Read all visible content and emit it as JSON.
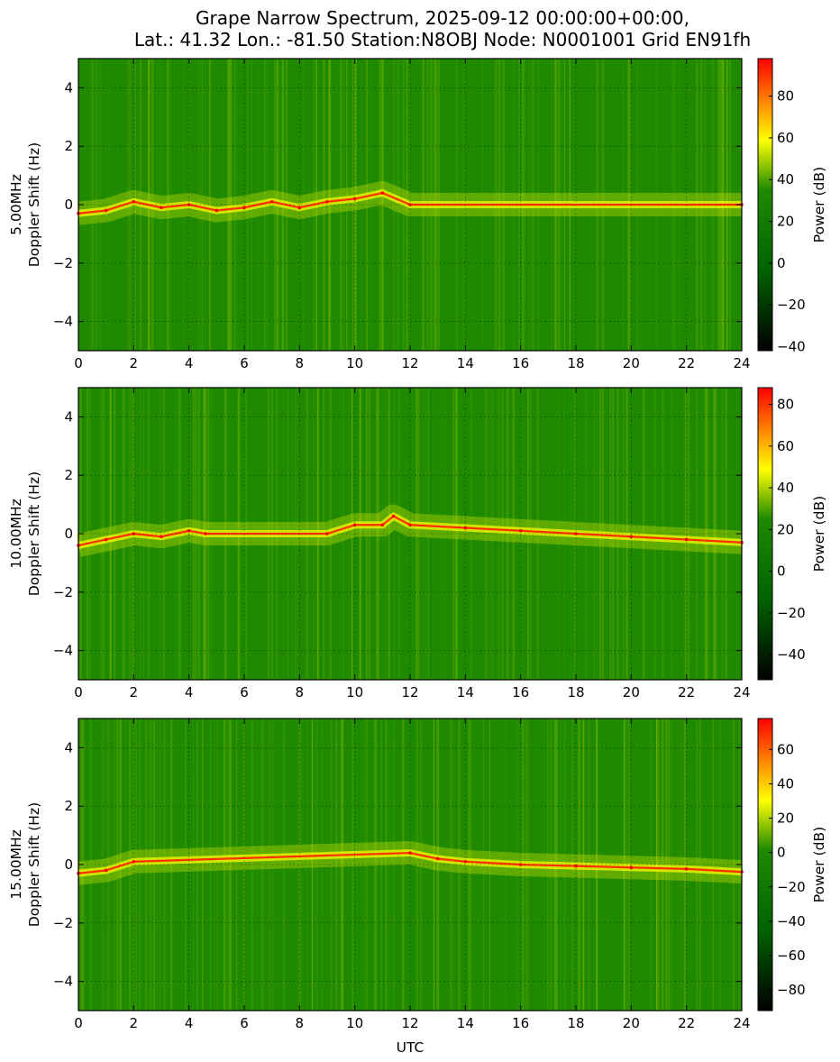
{
  "title": "Grape Narrow Spectrum, 2025-09-12 00:00:00+00:00,",
  "subtitle": "Lat.: 41.32 Lon.: -81.50 Station:N8OBJ Node: N0001001 Grid EN91fh",
  "colorscale": [
    "#000000",
    "#006400",
    "#1f8a00",
    "#ffff00",
    "#ff8000",
    "#ff0000"
  ],
  "chart_data": [
    {
      "type": "heatmap",
      "ylabel_line1": "5.00MHz",
      "ylabel_line2": "Doppler Shift (Hz)",
      "xlabel": "",
      "xlim": [
        0,
        24
      ],
      "ylim": [
        -5,
        5
      ],
      "xticks": [
        "0",
        "2",
        "4",
        "6",
        "8",
        "10",
        "12",
        "14",
        "16",
        "18",
        "20",
        "22",
        "24"
      ],
      "yticks": [
        "4",
        "2",
        "0",
        "−2",
        "−4"
      ],
      "grid": true,
      "colorbar": {
        "label": "Power (dB)",
        "range": [
          -42,
          98
        ],
        "ticks": [
          "80",
          "60",
          "40",
          "20",
          "0",
          "−20",
          "−40"
        ],
        "tick_values": [
          80,
          60,
          40,
          20,
          0,
          -20,
          -40
        ]
      },
      "doppler_trace": [
        {
          "x": 0,
          "y": -0.3
        },
        {
          "x": 1,
          "y": -0.2
        },
        {
          "x": 2,
          "y": 0.1
        },
        {
          "x": 3,
          "y": -0.1
        },
        {
          "x": 4,
          "y": 0.0
        },
        {
          "x": 5,
          "y": -0.2
        },
        {
          "x": 6,
          "y": -0.1
        },
        {
          "x": 7,
          "y": 0.1
        },
        {
          "x": 8,
          "y": -0.1
        },
        {
          "x": 9,
          "y": 0.1
        },
        {
          "x": 10,
          "y": 0.2
        },
        {
          "x": 11,
          "y": 0.4
        },
        {
          "x": 12,
          "y": 0.0
        },
        {
          "x": 24,
          "y": 0.0
        }
      ]
    },
    {
      "type": "heatmap",
      "ylabel_line1": "10.00MHz",
      "ylabel_line2": "Doppler Shift (Hz)",
      "xlabel": "",
      "xlim": [
        0,
        24
      ],
      "ylim": [
        -5,
        5
      ],
      "xticks": [
        "0",
        "2",
        "4",
        "6",
        "8",
        "10",
        "12",
        "14",
        "16",
        "18",
        "20",
        "22",
        "24"
      ],
      "yticks": [
        "4",
        "2",
        "0",
        "−2",
        "−4"
      ],
      "grid": true,
      "colorbar": {
        "label": "Power (dB)",
        "range": [
          -52,
          88
        ],
        "ticks": [
          "80",
          "60",
          "40",
          "20",
          "0",
          "−20",
          "−40"
        ],
        "tick_values": [
          80,
          60,
          40,
          20,
          0,
          -20,
          -40
        ]
      },
      "doppler_trace": [
        {
          "x": 0,
          "y": -0.4
        },
        {
          "x": 1,
          "y": -0.2
        },
        {
          "x": 2,
          "y": 0.0
        },
        {
          "x": 3,
          "y": -0.1
        },
        {
          "x": 4,
          "y": 0.1
        },
        {
          "x": 4.6,
          "y": 0.0
        },
        {
          "x": 9,
          "y": 0.0
        },
        {
          "x": 10,
          "y": 0.3
        },
        {
          "x": 11,
          "y": 0.3
        },
        {
          "x": 11.4,
          "y": 0.6
        },
        {
          "x": 12,
          "y": 0.3
        },
        {
          "x": 14,
          "y": 0.2
        },
        {
          "x": 16,
          "y": 0.1
        },
        {
          "x": 18,
          "y": 0.0
        },
        {
          "x": 20,
          "y": -0.1
        },
        {
          "x": 22,
          "y": -0.2
        },
        {
          "x": 24,
          "y": -0.3
        }
      ]
    },
    {
      "type": "heatmap",
      "ylabel_line1": "15.00MHz",
      "ylabel_line2": "Doppler Shift (Hz)",
      "xlabel": "UTC",
      "xlim": [
        0,
        24
      ],
      "ylim": [
        -5,
        5
      ],
      "xticks": [
        "0",
        "2",
        "4",
        "6",
        "8",
        "10",
        "12",
        "14",
        "16",
        "18",
        "20",
        "22",
        "24"
      ],
      "yticks": [
        "4",
        "2",
        "0",
        "−2",
        "−4"
      ],
      "grid": true,
      "colorbar": {
        "label": "Power (dB)",
        "range": [
          -92,
          78
        ],
        "ticks": [
          "60",
          "40",
          "20",
          "0",
          "−20",
          "−40",
          "−60",
          "−80"
        ],
        "tick_values": [
          60,
          40,
          20,
          0,
          -20,
          -40,
          -60,
          -80
        ]
      },
      "doppler_trace": [
        {
          "x": 0,
          "y": -0.3
        },
        {
          "x": 1,
          "y": -0.2
        },
        {
          "x": 2,
          "y": 0.1
        },
        {
          "x": 12,
          "y": 0.4
        },
        {
          "x": 13,
          "y": 0.2
        },
        {
          "x": 14,
          "y": 0.1
        },
        {
          "x": 16,
          "y": 0.0
        },
        {
          "x": 18,
          "y": -0.05
        },
        {
          "x": 20,
          "y": -0.1
        },
        {
          "x": 22,
          "y": -0.15
        },
        {
          "x": 24,
          "y": -0.25
        }
      ]
    }
  ]
}
